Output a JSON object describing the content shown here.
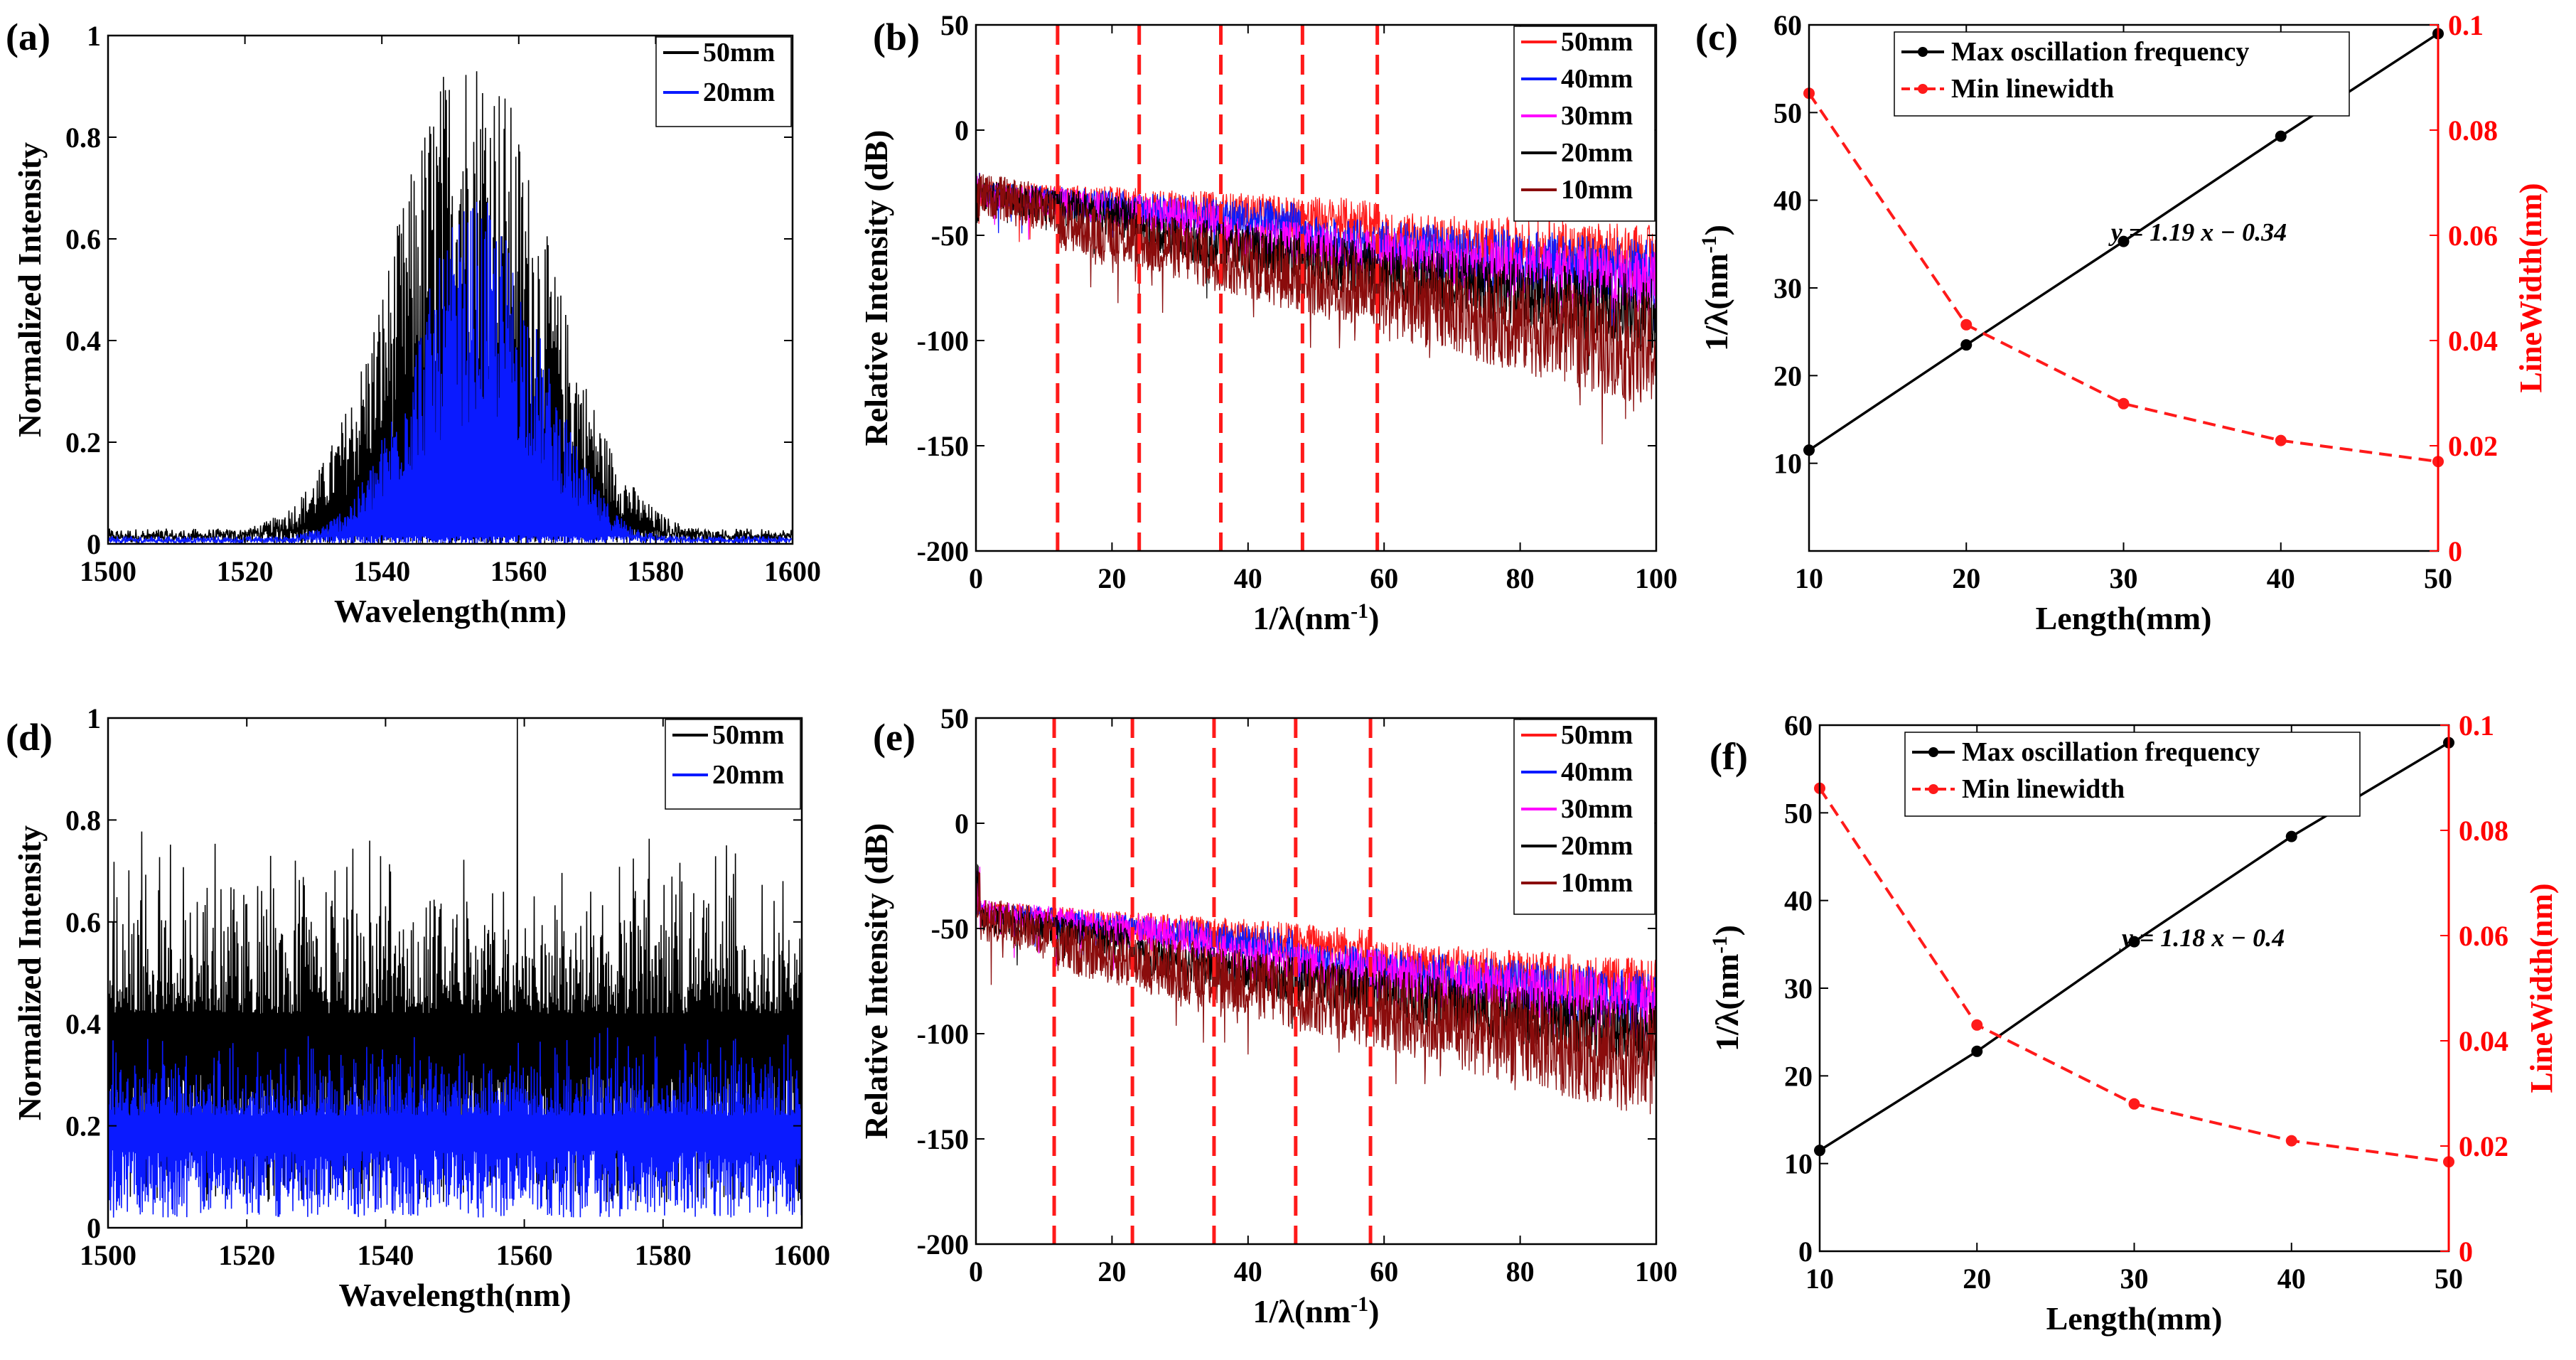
{
  "figure": {
    "panels": [
      "(a)",
      "(b)",
      "(c)",
      "(d)",
      "(e)",
      "(f)"
    ]
  },
  "colors": {
    "black": "#000000",
    "blue": "#0a1aff",
    "red": "#ff1a1a",
    "magenta": "#ff00ff",
    "darkred": "#8a0c0c",
    "axis": "#000000",
    "right_axis": "#ff0000"
  },
  "chart_data": [
    {
      "panel_label": "(a)",
      "type": "line",
      "xlabel": "Wavelength(nm)",
      "ylabel": "Normalized Intensity",
      "xlim": [
        1500,
        1600
      ],
      "ylim": [
        0,
        1
      ],
      "xticks": [
        1500,
        1520,
        1540,
        1560,
        1580,
        1600
      ],
      "yticks": [
        0,
        0.2,
        0.4,
        0.6,
        0.8,
        1
      ],
      "series": [
        {
          "name": "50mm",
          "color": "#000000",
          "profile": "gaussian",
          "center": 1553,
          "width": 11,
          "noise_peak": 1.0,
          "floor": 0.02
        },
        {
          "name": "20mm",
          "color": "#0a1aff",
          "profile": "gaussian",
          "center": 1554,
          "width": 9,
          "noise_peak": 0.68,
          "floor": 0.01
        }
      ],
      "legend_loc": "top-right"
    },
    {
      "panel_label": "(b)",
      "type": "line",
      "xlabel": "1/λ(nm-1)",
      "ylabel": "Relative Intensity (dB)",
      "xlim": [
        0,
        100
      ],
      "ylim": [
        -200,
        50
      ],
      "xticks": [
        0,
        20,
        40,
        60,
        80,
        100
      ],
      "yticks": [
        -200,
        -150,
        -100,
        -50,
        0,
        50
      ],
      "dashed_vlines": [
        12,
        24,
        36,
        48,
        59
      ],
      "series": [
        {
          "name": "50mm",
          "color": "#ff1a1a",
          "start": -30,
          "end": -55,
          "knee": 59,
          "spread": 6
        },
        {
          "name": "40mm",
          "color": "#0a1aff",
          "start": -30,
          "end": -62,
          "knee": 48,
          "spread": 6
        },
        {
          "name": "30mm",
          "color": "#ff00ff",
          "start": -30,
          "end": -68,
          "knee": 36,
          "spread": 6
        },
        {
          "name": "20mm",
          "color": "#000000",
          "start": -30,
          "end": -82,
          "knee": 24,
          "spread": 7
        },
        {
          "name": "10mm",
          "color": "#8a0c0c",
          "start": -30,
          "end": -100,
          "knee": 12,
          "spread": 10
        }
      ],
      "legend_loc": "top-right"
    },
    {
      "panel_label": "(c)",
      "type": "line",
      "xlabel": "Length(mm)",
      "ylabel": "1/λ(nm-1)",
      "ylabel_right": "LineWidth(nm)",
      "xlim": [
        10,
        50
      ],
      "ylim": [
        0,
        60
      ],
      "ylim_right": [
        0,
        0.1
      ],
      "xticks": [
        10,
        20,
        30,
        40,
        50
      ],
      "yticks": [
        10,
        20,
        30,
        40,
        50,
        60
      ],
      "yticks_right": [
        0,
        0.02,
        0.04,
        0.06,
        0.08,
        0.1
      ],
      "x": [
        10,
        20,
        30,
        40,
        50
      ],
      "series": [
        {
          "name": "Max oscillation frequency",
          "axis": "left",
          "color": "#000000",
          "values": [
            11.5,
            23.5,
            35.3,
            47.3,
            59.0
          ]
        },
        {
          "name": "Min linewidth",
          "axis": "right",
          "color": "#ff1a1a",
          "values": [
            0.087,
            0.043,
            0.028,
            0.021,
            0.017
          ]
        }
      ],
      "annotation": "y = 1.19 x − 0.34",
      "legend_loc": "top-left"
    },
    {
      "panel_label": "(d)",
      "type": "line",
      "xlabel": "Wavelength(nm)",
      "ylabel": "Normalized Intensity",
      "xlim": [
        1500,
        1600
      ],
      "ylim": [
        0,
        1
      ],
      "xticks": [
        1500,
        1520,
        1540,
        1560,
        1580,
        1600
      ],
      "yticks": [
        0,
        0.2,
        0.4,
        0.6,
        0.8,
        1
      ],
      "series": [
        {
          "name": "50mm",
          "color": "#000000",
          "profile": "flat",
          "level": 0.42,
          "noise_peak": 0.8,
          "floor": 0.05,
          "spike_at": 1559,
          "spike": 1.0
        },
        {
          "name": "20mm",
          "color": "#0a1aff",
          "profile": "flat",
          "level": 0.22,
          "noise_peak": 0.4,
          "floor": 0.02
        }
      ],
      "legend_loc": "top-right"
    },
    {
      "panel_label": "(e)",
      "type": "line",
      "xlabel": "1/λ(nm-1)",
      "ylabel": "Relative Intensity (dB)",
      "xlim": [
        0,
        100
      ],
      "ylim": [
        -200,
        50
      ],
      "xticks": [
        0,
        20,
        40,
        60,
        80,
        100
      ],
      "yticks": [
        -200,
        -150,
        -100,
        -50,
        0,
        50
      ],
      "dashed_vlines": [
        11.5,
        23,
        35,
        47,
        58
      ],
      "series": [
        {
          "name": "50mm",
          "color": "#ff1a1a",
          "start": -42,
          "end": -72,
          "knee": 58,
          "spread": 5
        },
        {
          "name": "40mm",
          "color": "#0a1aff",
          "start": -42,
          "end": -78,
          "knee": 47,
          "spread": 5
        },
        {
          "name": "30mm",
          "color": "#ff00ff",
          "start": -42,
          "end": -82,
          "knee": 35,
          "spread": 6
        },
        {
          "name": "20mm",
          "color": "#000000",
          "start": -45,
          "end": -95,
          "knee": 23,
          "spread": 6
        },
        {
          "name": "10mm",
          "color": "#8a0c0c",
          "start": -45,
          "end": -108,
          "knee": 11.5,
          "spread": 10
        }
      ],
      "legend_loc": "top-right"
    },
    {
      "panel_label": "(f)",
      "type": "line",
      "xlabel": "Length(mm)",
      "ylabel": "1/λ(nm-1)",
      "ylabel_right": "LineWidth(nm)",
      "xlim": [
        10,
        50
      ],
      "ylim": [
        0,
        60
      ],
      "ylim_right": [
        0,
        0.1
      ],
      "xticks": [
        10,
        20,
        30,
        40,
        50
      ],
      "yticks": [
        0,
        10,
        20,
        30,
        40,
        50,
        60
      ],
      "yticks_right": [
        0,
        0.02,
        0.04,
        0.06,
        0.08,
        0.1
      ],
      "x": [
        10,
        20,
        30,
        40,
        50
      ],
      "series": [
        {
          "name": "Max oscillation frequency",
          "axis": "left",
          "color": "#000000",
          "values": [
            11.5,
            22.8,
            35.3,
            47.3,
            58.0
          ]
        },
        {
          "name": "Min linewidth",
          "axis": "right",
          "color": "#ff1a1a",
          "values": [
            0.088,
            0.043,
            0.028,
            0.021,
            0.017
          ]
        }
      ],
      "annotation": "y = 1.18 x − 0.4",
      "legend_loc": "top-left"
    }
  ]
}
